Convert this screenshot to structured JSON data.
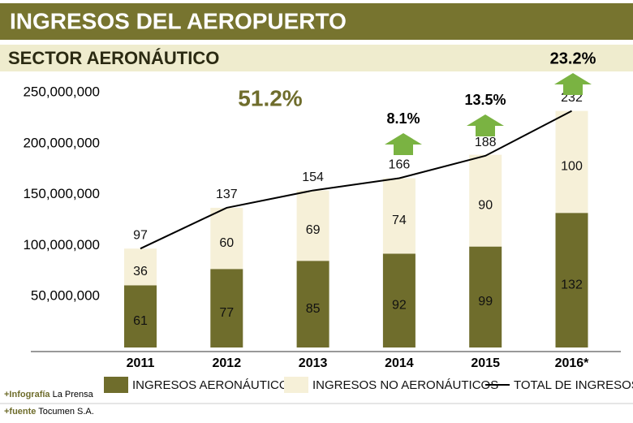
{
  "chart_data": {
    "type": "stacked-bar-line",
    "title": "INGRESOS DEL AEROPUERTO",
    "subtitle": "SECTOR AERONÁUTICO",
    "categories": [
      "2011",
      "2012",
      "2013",
      "2014",
      "2015",
      "2016*"
    ],
    "series": [
      {
        "name": "INGRESOS AERONÁUTICOS",
        "color": "#6f6d2c",
        "type": "bar",
        "values": [
          61000000,
          77000000,
          85000000,
          92000000,
          99000000,
          132000000
        ],
        "value_labels": [
          "61",
          "77",
          "85",
          "92",
          "99",
          "132"
        ]
      },
      {
        "name": "INGRESOS NO AERONÁUTICOS",
        "color": "#f6f0d8",
        "type": "bar",
        "values": [
          36000000,
          60000000,
          69000000,
          74000000,
          90000000,
          100000000
        ],
        "value_labels": [
          "36",
          "60",
          "69",
          "74",
          "90",
          "100"
        ]
      },
      {
        "name": "TOTAL DE INGRESOS",
        "color": "#000000",
        "type": "line",
        "values": [
          97000000,
          137000000,
          154000000,
          166000000,
          188000000,
          232000000
        ],
        "value_labels": [
          "97",
          "137",
          "154",
          "166",
          "188",
          "232"
        ]
      }
    ],
    "ylim": [
      0,
      250000000
    ],
    "yticks": [
      {
        "value": 50000000,
        "label": "50,000,000"
      },
      {
        "value": 100000000,
        "label": "100,000,000"
      },
      {
        "value": 150000000,
        "label": "150,000,000"
      },
      {
        "value": 200000000,
        "label": "200,000,000"
      },
      {
        "value": 250000000,
        "label": "250,000,000"
      }
    ],
    "annotations": [
      "51.2%",
      "8.1%",
      "13.5%",
      "23.2%"
    ],
    "credits": [
      {
        "prefix": "+Infografía",
        "text": "La Prensa"
      },
      {
        "prefix": "+fuente",
        "text": "Tocumen S.A."
      }
    ]
  }
}
